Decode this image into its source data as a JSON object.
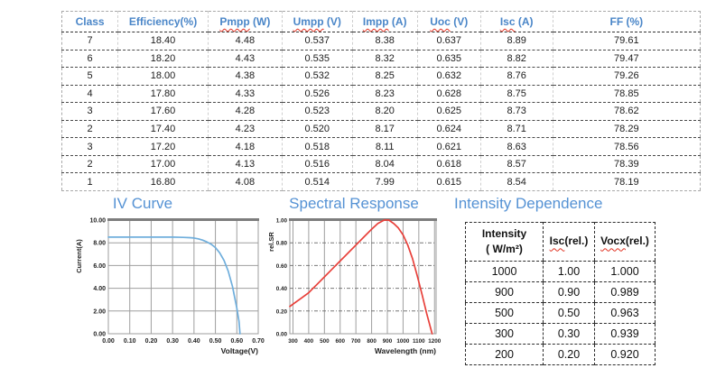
{
  "colors": {
    "header_blue": "#4A86C8",
    "title_blue": "#5592D4",
    "iv_curve_line": "#6FAEDC",
    "spectral_line": "#E8403A",
    "grid_gray": "#9E9E9E",
    "squiggle_red": "#E03020"
  },
  "main_table": {
    "headers": [
      {
        "pre": "Class",
        "wavy": "",
        "post": ""
      },
      {
        "pre": "Efficiency(%)",
        "wavy": "",
        "post": ""
      },
      {
        "pre": "",
        "wavy": "Pmpp",
        "post": " (W)"
      },
      {
        "pre": "",
        "wavy": "Umpp",
        "post": " (V)"
      },
      {
        "pre": "",
        "wavy": "Impp",
        "post": " (A)"
      },
      {
        "pre": "",
        "wavy": "Uoc",
        "post": " (V)"
      },
      {
        "pre": "",
        "wavy": "Isc",
        "post": " (A)"
      },
      {
        "pre": "FF (%)",
        "wavy": "",
        "post": ""
      }
    ],
    "rows": [
      [
        "7",
        "18.40",
        "4.48",
        "0.537",
        "8.38",
        "0.637",
        "8.89",
        "79.61"
      ],
      [
        "6",
        "18.20",
        "4.43",
        "0.535",
        "8.32",
        "0.635",
        "8.82",
        "79.47"
      ],
      [
        "5",
        "18.00",
        "4.38",
        "0.532",
        "8.25",
        "0.632",
        "8.76",
        "79.26"
      ],
      [
        "4",
        "17.80",
        "4.33",
        "0.526",
        "8.23",
        "0.628",
        "8.75",
        "78.85"
      ],
      [
        "3",
        "17.60",
        "4.28",
        "0.523",
        "8.20",
        "0.625",
        "8.73",
        "78.62"
      ],
      [
        "2",
        "17.40",
        "4.23",
        "0.520",
        "8.17",
        "0.624",
        "8.71",
        "78.29"
      ],
      [
        "3",
        "17.20",
        "4.18",
        "0.518",
        "8.11",
        "0.621",
        "8.63",
        "78.56"
      ],
      [
        "2",
        "17.00",
        "4.13",
        "0.516",
        "8.04",
        "0.618",
        "8.57",
        "78.39"
      ],
      [
        "1",
        "16.80",
        "4.08",
        "0.514",
        "7.99",
        "0.615",
        "8.54",
        "78.19"
      ]
    ]
  },
  "sections": {
    "iv_title": "IV Curve",
    "spectral_title": "Spectral Response",
    "intensity_title": "Intensity Dependence"
  },
  "chart_data": [
    {
      "type": "line",
      "title": "IV Curve",
      "xlabel": "Voltage(V)",
      "ylabel": "Current(A)",
      "xlim": [
        0,
        0.7
      ],
      "ylim": [
        0,
        10
      ],
      "xticks": [
        [
          0,
          "0.00"
        ],
        [
          0.1,
          "0.10"
        ],
        [
          0.2,
          "0.20"
        ],
        [
          0.3,
          "0.30"
        ],
        [
          0.4,
          "0.40"
        ],
        [
          0.5,
          "0.50"
        ],
        [
          0.6,
          "0.60"
        ],
        [
          0.7,
          "0.70"
        ]
      ],
      "yticks": [
        [
          0,
          "0.00"
        ],
        [
          2,
          "2.00"
        ],
        [
          4,
          "4.00"
        ],
        [
          6,
          "6.00"
        ],
        [
          8,
          "8.00"
        ],
        [
          10,
          "10.00"
        ]
      ],
      "grid": true,
      "h_grid_dashed": false,
      "legend": "none",
      "series": [
        {
          "name": "IV",
          "x": [
            0,
            0.05,
            0.1,
            0.15,
            0.2,
            0.25,
            0.3,
            0.35,
            0.38,
            0.4,
            0.42,
            0.44,
            0.46,
            0.48,
            0.5,
            0.52,
            0.54,
            0.56,
            0.58,
            0.6,
            0.61,
            0.615
          ],
          "y": [
            8.5,
            8.5,
            8.5,
            8.5,
            8.5,
            8.5,
            8.5,
            8.48,
            8.45,
            8.42,
            8.35,
            8.24,
            8.08,
            7.88,
            7.58,
            7.12,
            6.45,
            5.5,
            4.15,
            2.25,
            1.1,
            0.0
          ]
        }
      ]
    },
    {
      "type": "line",
      "title": "Spectral Response",
      "xlabel": "Wavelength (nm)",
      "ylabel": "rel.SR",
      "xlim": [
        280,
        1210
      ],
      "ylim": [
        0,
        1.0
      ],
      "xticks": [
        [
          300,
          "300"
        ],
        [
          400,
          "400"
        ],
        [
          500,
          "500"
        ],
        [
          600,
          "600"
        ],
        [
          700,
          "700"
        ],
        [
          800,
          "800"
        ],
        [
          900,
          "900"
        ],
        [
          1000,
          "1000"
        ],
        [
          1100,
          "1100"
        ],
        [
          1200,
          "1200"
        ]
      ],
      "yticks": [
        [
          0,
          "0.00"
        ],
        [
          0.2,
          "0.20"
        ],
        [
          0.4,
          "0.40"
        ],
        [
          0.6,
          "0.60"
        ],
        [
          0.8,
          "0.80"
        ],
        [
          1,
          "1.00"
        ]
      ],
      "grid": true,
      "h_grid_dashed": true,
      "legend": "none",
      "series": [
        {
          "name": "rel.SR",
          "x": [
            280,
            300,
            350,
            400,
            420,
            450,
            500,
            550,
            600,
            650,
            700,
            750,
            800,
            840,
            880,
            910,
            940,
            970,
            1000,
            1030,
            1060,
            1090,
            1120,
            1150,
            1185
          ],
          "y": [
            0.24,
            0.26,
            0.31,
            0.36,
            0.39,
            0.43,
            0.5,
            0.57,
            0.64,
            0.71,
            0.78,
            0.85,
            0.92,
            0.97,
            1.0,
            1.0,
            0.97,
            0.93,
            0.87,
            0.78,
            0.66,
            0.51,
            0.35,
            0.18,
            0.0
          ]
        }
      ]
    }
  ],
  "intensity_table": {
    "headers": [
      {
        "line1": "Intensity",
        "line2": "( W/m²)",
        "wavy": "",
        "post": ""
      },
      {
        "line1": "",
        "line2": "",
        "wavy": "Isc",
        "post": "(rel.)"
      },
      {
        "line1": "",
        "line2": "",
        "wavy": "Vocx",
        "post": "(rel.)"
      }
    ],
    "rows": [
      [
        "1000",
        "1.00",
        "1.000"
      ],
      [
        "900",
        "0.90",
        "0.989"
      ],
      [
        "500",
        "0.50",
        "0.963"
      ],
      [
        "300",
        "0.30",
        "0.939"
      ],
      [
        "200",
        "0.20",
        "0.920"
      ]
    ]
  }
}
